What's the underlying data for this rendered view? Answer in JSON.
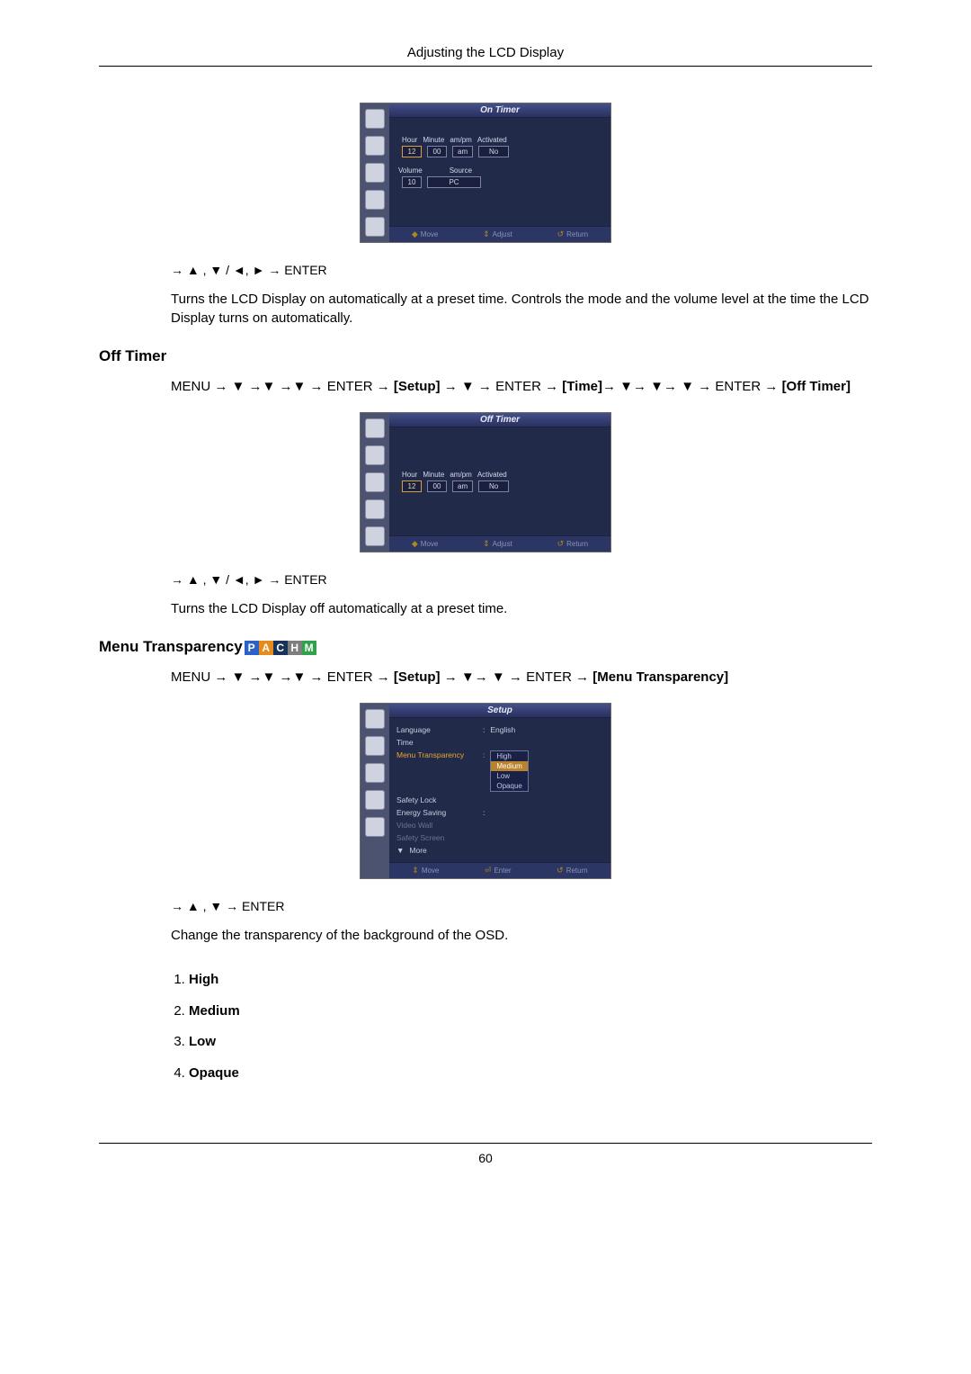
{
  "page": {
    "header": "Adjusting the LCD Display",
    "number": "60"
  },
  "osd_common": {
    "footer_move": "Move",
    "footer_adjust": "Adjust",
    "footer_enter": "Enter",
    "footer_return": "Return"
  },
  "on_timer_osd": {
    "title": "On Timer",
    "labels": {
      "hour": "Hour",
      "minute": "Minute",
      "ampm": "am/pm",
      "activated": "Activated",
      "volume": "Volume",
      "source": "Source"
    },
    "values": {
      "hour": "12",
      "minute": "00",
      "ampm": "am",
      "activated": "No",
      "volume": "10",
      "source": "PC"
    }
  },
  "off_timer_osd": {
    "title": "Off Timer",
    "labels": {
      "hour": "Hour",
      "minute": "Minute",
      "ampm": "am/pm",
      "activated": "Activated"
    },
    "values": {
      "hour": "12",
      "minute": "00",
      "ampm": "am",
      "activated": "No"
    }
  },
  "setup_osd": {
    "title": "Setup",
    "rows": {
      "language": "Language",
      "language_val": "English",
      "time": "Time",
      "menu_transparency": "Menu Transparency",
      "safety_lock": "Safety Lock",
      "energy_saving": "Energy Saving",
      "video_wall": "Video Wall",
      "safety_screen": "Safety Screen",
      "more": "More"
    },
    "options": {
      "high": "High",
      "medium": "Medium",
      "low": "Low",
      "opaque": "Opaque"
    }
  },
  "section1": {
    "nav": "→ ▲ , ▼ / ◄, ► → ENTER",
    "para": "Turns the LCD Display on automatically at a preset time. Controls the mode and the volume level at the time the LCD Display turns on automatically."
  },
  "section2": {
    "heading": "Off Timer",
    "path_prefix": "MENU → ▼ →▼ →▼ → ENTER → ",
    "path_setup": "[Setup]",
    "path_mid": " → ▼ → ENTER → ",
    "path_time": "[Time]",
    "path_mid2": "→ ▼→ ▼→ ▼ → ENTER → ",
    "path_off": "[Off Timer]",
    "nav": "→ ▲ , ▼ / ◄, ► → ENTER",
    "para": "Turns the LCD Display off automatically at a preset time."
  },
  "section3": {
    "heading": "Menu Transparency",
    "modes": [
      {
        "l": "P",
        "c": "#2a62c8"
      },
      {
        "l": "A",
        "c": "#e88b1e"
      },
      {
        "l": "C",
        "c": "#18335a"
      },
      {
        "l": "H",
        "c": "#7e7e7e"
      },
      {
        "l": "M",
        "c": "#2fa24b"
      }
    ],
    "path_prefix": "MENU → ▼ →▼ →▼ → ENTER → ",
    "path_setup": "[Setup]",
    "path_mid": " → ▼→ ▼ → ENTER → ",
    "path_target": "[Menu Transparency]",
    "nav": "→ ▲ , ▼ → ENTER",
    "para": "Change the transparency of the background of the OSD.",
    "list": {
      "1": "High",
      "2": "Medium",
      "3": "Low",
      "4": "Opaque"
    }
  }
}
